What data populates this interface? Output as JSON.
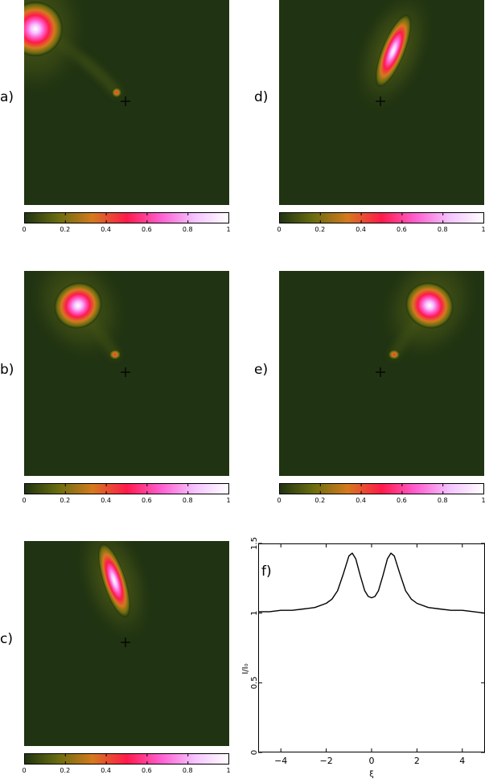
{
  "panels": [
    {
      "id": "a",
      "label": "a)"
    },
    {
      "id": "b",
      "label": "b)"
    },
    {
      "id": "c",
      "label": "c)"
    },
    {
      "id": "d",
      "label": "d)"
    },
    {
      "id": "e",
      "label": "e)"
    }
  ],
  "colors": {
    "background": "#203312",
    "colormap": [
      "#203312",
      "#6a6d0f",
      "#d47a1e",
      "#ff1a4a",
      "#ff5fd0",
      "#f4c4ff",
      "#ffffff"
    ]
  },
  "colorbar": {
    "ticks": [
      "0",
      "0.2",
      "0.4",
      "0.6",
      "0.8",
      "1"
    ]
  },
  "chart_data": [
    {
      "type": "heatmap",
      "panel": "a",
      "features": [
        {
          "kind": "blob",
          "position": "top-left corner",
          "peak": 1.0
        },
        {
          "kind": "small spot",
          "position": "near center",
          "peak": 0.5
        }
      ],
      "marker": "cross at center",
      "colorbar_range": [
        0,
        1
      ]
    },
    {
      "type": "heatmap",
      "panel": "b",
      "features": [
        {
          "kind": "blob",
          "position": "upper-left",
          "peak": 1.0
        },
        {
          "kind": "small spot",
          "position": "near center",
          "peak": 0.5
        }
      ],
      "marker": "cross at center",
      "colorbar_range": [
        0,
        1
      ]
    },
    {
      "type": "heatmap",
      "panel": "c",
      "features": [
        {
          "kind": "elongated blob",
          "position": "above center",
          "peak": 1.0
        }
      ],
      "marker": "cross at center",
      "colorbar_range": [
        0,
        1
      ]
    },
    {
      "type": "heatmap",
      "panel": "d",
      "features": [
        {
          "kind": "elongated blob",
          "position": "above center",
          "peak": 1.0
        }
      ],
      "marker": "cross at center",
      "colorbar_range": [
        0,
        1
      ]
    },
    {
      "type": "heatmap",
      "panel": "e",
      "features": [
        {
          "kind": "blob",
          "position": "upper-right",
          "peak": 1.0
        },
        {
          "kind": "small spot",
          "position": "near center",
          "peak": 0.5
        }
      ],
      "marker": "cross at center",
      "colorbar_range": [
        0,
        1
      ]
    },
    {
      "type": "line",
      "panel": "f",
      "label": "f)",
      "xlabel": "ξ",
      "ylabel": "I/I₀",
      "xlim": [
        -5,
        5
      ],
      "ylim": [
        0,
        1.5
      ],
      "xticks": [
        "−4",
        "−2",
        "0",
        "2",
        "4"
      ],
      "yticks": [
        "0",
        "0.5",
        "1",
        "1.5"
      ],
      "series": [
        {
          "x": [
            -5,
            -4.5,
            -4,
            -3.5,
            -3,
            -2.5,
            -2,
            -1.75,
            -1.5,
            -1.25,
            -1,
            -0.85,
            -0.7,
            -0.5,
            -0.3,
            -0.15,
            0,
            0.15,
            0.3,
            0.5,
            0.7,
            0.85,
            1,
            1.25,
            1.5,
            1.75,
            2,
            2.5,
            3,
            3.5,
            4,
            4.5,
            5
          ],
          "y": [
            1.01,
            1.01,
            1.02,
            1.02,
            1.03,
            1.04,
            1.07,
            1.1,
            1.16,
            1.28,
            1.41,
            1.43,
            1.39,
            1.27,
            1.16,
            1.12,
            1.11,
            1.12,
            1.16,
            1.27,
            1.39,
            1.43,
            1.41,
            1.28,
            1.16,
            1.1,
            1.07,
            1.04,
            1.03,
            1.02,
            1.02,
            1.01,
            1.0
          ]
        }
      ]
    }
  ]
}
